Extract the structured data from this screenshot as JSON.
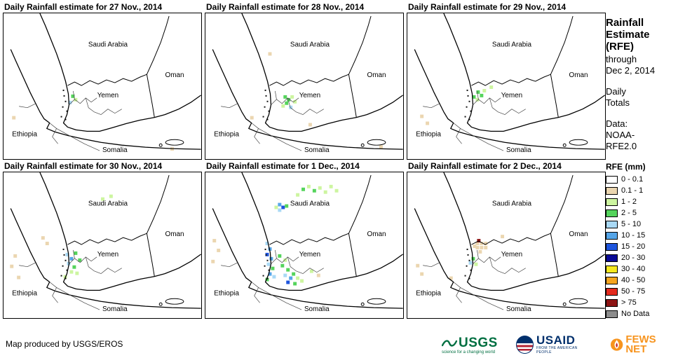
{
  "palette": {
    "t": "#EBD6B0",
    "g1": "#CDF5A0",
    "g2": "#55D45C",
    "b1": "#A9D9F5",
    "b2": "#55A5E8",
    "b3": "#1E55DD",
    "b4": "#0A0A96",
    "y": "#F5E81F",
    "o": "#F5A51F",
    "r1": "#E32B1E",
    "r2": "#8D1414",
    "nd": "#8C8C8C"
  },
  "map_labels": {
    "saudi": "Saudi Arabia",
    "oman": "Oman",
    "yemen": "Yemen",
    "ethiopia": "Ethiopia",
    "somalia": "Somalia"
  },
  "panels": [
    {
      "title": "Daily Rainfall estimate for 27 Nov., 2014",
      "rain": [
        [
          97,
          117,
          "g2"
        ],
        [
          101,
          122,
          "g1"
        ],
        [
          93,
          126,
          "b1"
        ],
        [
          12,
          148,
          "t"
        ],
        [
          240,
          193,
          "t"
        ]
      ]
    },
    {
      "title": "Daily Rainfall estimate for 28 Nov., 2014",
      "rain": [
        [
          112,
          118,
          "g2"
        ],
        [
          117,
          122,
          "g2"
        ],
        [
          122,
          118,
          "g1"
        ],
        [
          114,
          127,
          "g2"
        ],
        [
          109,
          131,
          "g1"
        ],
        [
          126,
          125,
          "g1"
        ],
        [
          120,
          133,
          "b1"
        ],
        [
          64,
          148,
          "t"
        ],
        [
          148,
          158,
          "t"
        ],
        [
          90,
          56,
          "t"
        ],
        [
          250,
          190,
          "t"
        ]
      ]
    },
    {
      "title": "Daily Rainfall estimate for 29 Nov., 2014",
      "rain": [
        [
          99,
          111,
          "g2"
        ],
        [
          104,
          116,
          "g2"
        ],
        [
          98,
          122,
          "g1"
        ],
        [
          93,
          118,
          "g2"
        ],
        [
          108,
          109,
          "g1"
        ],
        [
          118,
          104,
          "g1"
        ],
        [
          18,
          146,
          "t"
        ],
        [
          26,
          156,
          "t"
        ]
      ]
    },
    {
      "title": "Daily Rainfall estimate for 30 Nov., 2014",
      "rain": [
        [
          89,
          116,
          "b1"
        ],
        [
          95,
          122,
          "b2"
        ],
        [
          91,
          129,
          "b1"
        ],
        [
          101,
          114,
          "g2"
        ],
        [
          107,
          124,
          "g2"
        ],
        [
          99,
          134,
          "g2"
        ],
        [
          95,
          141,
          "g1"
        ],
        [
          103,
          143,
          "g1"
        ],
        [
          86,
          148,
          "g1"
        ],
        [
          14,
          118,
          "t"
        ],
        [
          9,
          133,
          "t"
        ],
        [
          19,
          149,
          "t"
        ],
        [
          54,
          92,
          "t"
        ],
        [
          60,
          100,
          "t"
        ],
        [
          140,
          36,
          "g1"
        ],
        [
          152,
          32,
          "g1"
        ]
      ]
    },
    {
      "title": "Daily Rainfall estimate for 1 Dec., 2014",
      "rain": [
        [
          138,
          22,
          "g2"
        ],
        [
          146,
          18,
          "g1"
        ],
        [
          154,
          24,
          "g2"
        ],
        [
          162,
          20,
          "g1"
        ],
        [
          170,
          26,
          "g1"
        ],
        [
          178,
          18,
          "g1"
        ],
        [
          130,
          30,
          "g1"
        ],
        [
          186,
          24,
          "g1"
        ],
        [
          104,
          44,
          "b2"
        ],
        [
          109,
          48,
          "b3"
        ],
        [
          104,
          52,
          "b1"
        ],
        [
          114,
          46,
          "g2"
        ],
        [
          99,
          48,
          "g1"
        ],
        [
          86,
          100,
          "b1"
        ],
        [
          90,
          108,
          "b2"
        ],
        [
          86,
          116,
          "b3"
        ],
        [
          92,
          122,
          "b2"
        ],
        [
          88,
          130,
          "b1"
        ],
        [
          94,
          136,
          "g2"
        ],
        [
          90,
          144,
          "b2"
        ],
        [
          96,
          148,
          "b1"
        ],
        [
          86,
          152,
          "g2"
        ],
        [
          104,
          118,
          "g2"
        ],
        [
          112,
          124,
          "g1"
        ],
        [
          108,
          132,
          "g2"
        ],
        [
          116,
          138,
          "g2"
        ],
        [
          112,
          146,
          "b1"
        ],
        [
          120,
          150,
          "b2"
        ],
        [
          116,
          156,
          "b3"
        ],
        [
          124,
          144,
          "g2"
        ],
        [
          130,
          150,
          "g1"
        ],
        [
          126,
          158,
          "g2"
        ],
        [
          136,
          154,
          "g1"
        ],
        [
          150,
          140,
          "g1"
        ],
        [
          160,
          146,
          "t"
        ],
        [
          10,
          96,
          "t"
        ],
        [
          16,
          110,
          "t"
        ],
        [
          8,
          126,
          "t"
        ]
      ]
    },
    {
      "title": "Daily Rainfall estimate for 2 Dec., 2014",
      "rain": [
        [
          98,
          100,
          "t"
        ],
        [
          104,
          100,
          "t"
        ],
        [
          110,
          100,
          "t"
        ],
        [
          98,
          106,
          "t"
        ],
        [
          104,
          106,
          "t"
        ],
        [
          110,
          106,
          "t"
        ],
        [
          102,
          112,
          "t"
        ],
        [
          94,
          104,
          "t"
        ],
        [
          100,
          96,
          "r2"
        ],
        [
          92,
          122,
          "g2"
        ],
        [
          88,
          128,
          "b1"
        ],
        [
          96,
          130,
          "g1"
        ],
        [
          12,
          132,
          "t"
        ],
        [
          18,
          144,
          "t"
        ],
        [
          60,
          150,
          "t"
        ],
        [
          134,
          90,
          "t"
        ]
      ]
    }
  ],
  "sidebar": {
    "title": "Rainfall\nEstimate\n(RFE)",
    "subtitle": "through\nDec 2, 2014",
    "period": "Daily\nTotals",
    "data_source": "Data:\nNOAA-\nRFE2.0",
    "legend_title": "RFE (mm)",
    "legend": [
      {
        "label": "0 - 0.1",
        "color": "#FFFFFF"
      },
      {
        "label": "0.1 - 1",
        "color": "#EBD6B0"
      },
      {
        "label": "1 - 2",
        "color": "#CDF5A0"
      },
      {
        "label": "2 - 5",
        "color": "#55D45C"
      },
      {
        "label": "5 - 10",
        "color": "#A9D9F5"
      },
      {
        "label": "10 - 15",
        "color": "#55A5E8"
      },
      {
        "label": "15 - 20",
        "color": "#1E55DD"
      },
      {
        "label": "20 - 30",
        "color": "#0A0A96"
      },
      {
        "label": "30 - 40",
        "color": "#F5E81F"
      },
      {
        "label": "40 - 50",
        "color": "#F5A51F"
      },
      {
        "label": "50 - 75",
        "color": "#E32B1E"
      },
      {
        "label": "> 75",
        "color": "#8D1414"
      },
      {
        "label": "No Data",
        "color": "#8C8C8C"
      }
    ]
  },
  "footer": {
    "credit": "Map produced by USGS/EROS",
    "logos": {
      "usgs": {
        "name": "USGS",
        "tagline": "science for a changing world"
      },
      "usaid": {
        "name": "USAID",
        "tagline": "FROM THE AMERICAN PEOPLE"
      },
      "fewsnet": {
        "name": "FEWS NET",
        "tagline": ""
      }
    }
  }
}
